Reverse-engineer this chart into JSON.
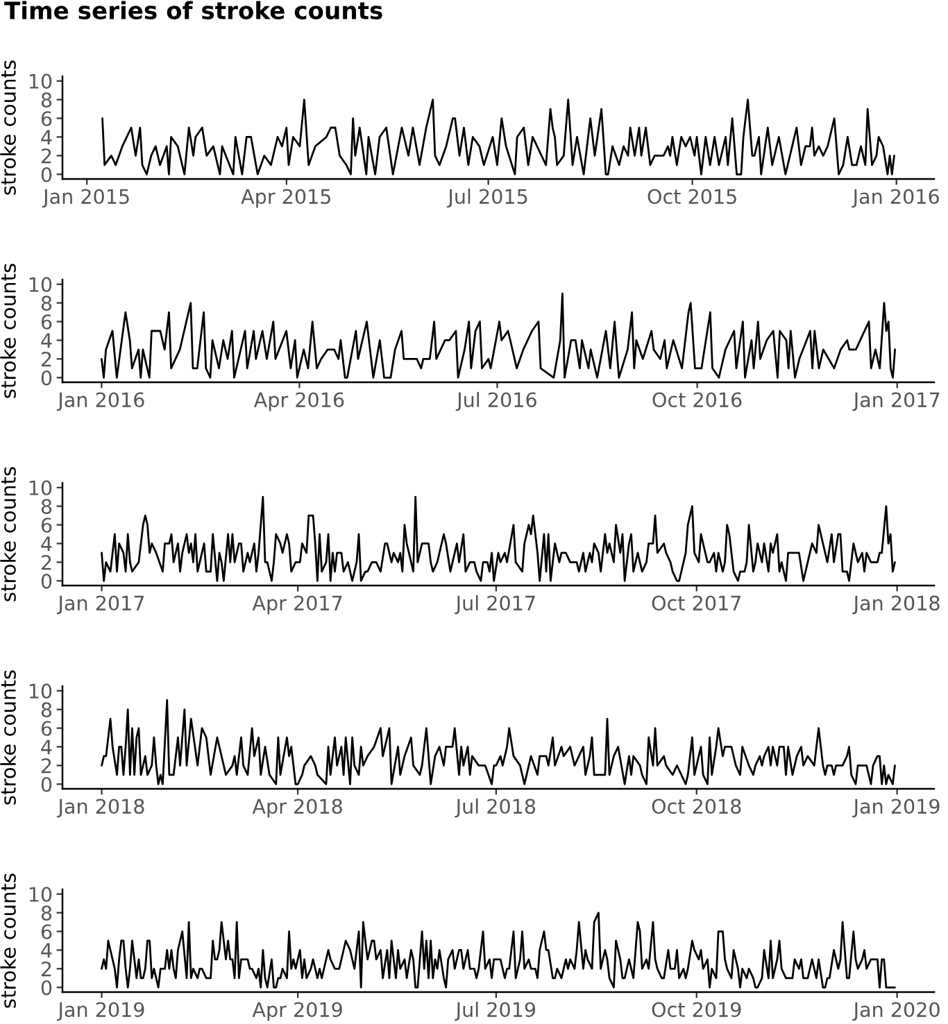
{
  "chart_data": [
    {
      "type": "line",
      "title": "Time series of stroke counts",
      "ylabel": "stroke counts",
      "color": "#000000",
      "x": [
        "2015-01-08",
        "2015-01-09",
        "2015-01-12",
        "2015-01-14",
        "2015-01-17",
        "2015-01-19",
        "2015-01-21",
        "2015-01-23",
        "2015-01-25",
        "2015-01-26",
        "2015-01-28",
        "2015-01-30",
        "2015-02-01",
        "2015-02-03",
        "2015-02-06",
        "2015-02-07",
        "2015-02-08",
        "2015-02-11",
        "2015-02-14",
        "2015-02-16",
        "2015-02-18",
        "2015-02-19",
        "2015-02-22",
        "2015-02-24",
        "2015-02-27",
        "2015-03-02",
        "2015-03-03",
        "2015-03-08",
        "2015-03-09",
        "2015-03-12",
        "2015-03-14",
        "2015-03-16",
        "2015-03-19",
        "2015-03-22",
        "2015-03-25",
        "2015-03-28",
        "2015-03-30",
        "2015-04-01",
        "2015-04-02",
        "2015-04-04",
        "2015-04-07",
        "2015-04-09",
        "2015-04-11",
        "2015-04-14",
        "2015-04-19",
        "2015-04-21",
        "2015-04-23",
        "2015-04-25",
        "2015-04-28",
        "2015-04-30",
        "2015-05-01",
        "2015-05-02",
        "2015-05-04",
        "2015-05-07",
        "2015-05-08",
        "2015-05-11",
        "2015-05-13",
        "2015-05-16",
        "2015-05-19",
        "2015-05-23",
        "2015-05-26",
        "2015-05-28",
        "2015-05-31",
        "2015-06-03",
        "2015-06-06",
        "2015-06-07",
        "2015-06-09",
        "2015-06-12",
        "2015-06-15",
        "2015-06-16",
        "2015-06-18",
        "2015-06-20",
        "2015-06-22",
        "2015-06-24",
        "2015-06-27",
        "2015-06-29",
        "2015-07-03",
        "2015-07-05",
        "2015-07-07",
        "2015-07-09",
        "2015-07-13",
        "2015-07-14",
        "2015-07-17",
        "2015-07-19",
        "2015-07-21",
        "2015-07-25",
        "2015-07-27",
        "2015-07-29",
        "2015-07-30",
        "2015-07-31",
        "2015-08-01",
        "2015-08-04",
        "2015-08-06",
        "2015-08-08",
        "2015-08-10",
        "2015-08-13",
        "2015-08-16",
        "2015-08-18",
        "2015-08-21",
        "2015-08-23",
        "2015-08-24",
        "2015-08-26",
        "2015-08-29",
        "2015-08-31",
        "2015-09-02",
        "2015-09-03",
        "2015-09-05",
        "2015-09-07",
        "2015-09-08",
        "2015-09-10",
        "2015-09-12",
        "2015-09-14",
        "2015-09-18",
        "2015-09-20",
        "2015-09-21",
        "2015-09-22",
        "2015-09-24",
        "2015-09-26",
        "2015-09-28",
        "2015-09-30",
        "2015-10-02",
        "2015-10-03",
        "2015-10-05",
        "2015-10-07",
        "2015-10-09",
        "2015-10-11",
        "2015-10-13",
        "2015-10-16",
        "2015-10-17",
        "2015-10-19",
        "2015-10-21",
        "2015-10-23",
        "2015-10-24",
        "2015-10-26",
        "2015-10-28",
        "2015-10-29",
        "2015-10-31",
        "2015-11-01",
        "2015-11-04",
        "2015-11-06",
        "2015-11-09",
        "2015-11-12",
        "2015-11-15",
        "2015-11-17",
        "2015-11-19",
        "2015-11-21",
        "2015-11-23",
        "2015-11-24",
        "2015-11-25",
        "2015-11-27",
        "2015-11-29",
        "2015-12-01",
        "2015-12-04",
        "2015-12-06",
        "2015-12-08",
        "2015-12-10",
        "2015-12-12",
        "2015-12-14",
        "2015-12-16",
        "2015-12-18",
        "2015-12-19",
        "2015-12-21",
        "2015-12-23",
        "2015-12-24",
        "2015-12-26",
        "2015-12-28",
        "2015-12-29",
        "2015-12-30",
        "2015-12-31"
      ],
      "values": [
        6,
        1,
        2,
        1,
        3,
        4,
        5,
        2,
        5,
        1,
        0,
        2,
        3,
        1,
        3,
        0,
        4,
        3,
        0,
        5,
        2,
        4,
        5,
        2,
        3,
        0,
        3,
        0,
        4,
        0,
        4,
        4,
        0,
        2,
        1,
        4,
        3,
        5,
        1,
        4,
        3,
        8,
        1,
        3,
        4,
        5,
        5,
        2,
        1,
        0,
        6,
        2,
        5,
        0,
        4,
        0,
        4,
        5,
        0,
        5,
        2,
        5,
        1,
        5,
        8,
        2,
        1,
        3,
        6,
        6,
        2,
        5,
        1,
        4,
        3,
        1,
        4,
        1,
        6,
        3,
        0,
        4,
        5,
        1,
        4,
        2,
        1,
        7,
        5,
        4,
        1,
        2,
        8,
        1,
        4,
        0,
        6,
        2,
        7,
        0,
        0,
        3,
        1,
        3,
        2,
        5,
        2,
        5,
        2,
        5,
        1,
        2,
        2,
        3,
        2,
        4,
        1,
        4,
        3,
        4,
        2,
        4,
        0,
        4,
        1,
        4,
        1,
        4,
        1,
        6,
        0,
        0,
        4,
        8,
        2,
        2,
        4,
        0,
        5,
        1,
        4,
        0,
        3,
        5,
        1,
        3,
        3,
        5,
        2,
        3,
        2,
        3,
        6,
        0,
        1,
        4,
        1,
        1,
        3,
        1,
        7,
        1,
        2,
        4,
        3,
        0,
        2,
        0,
        2
      ],
      "xlim": [
        "2014-12-21",
        "2016-01-18"
      ],
      "xticks": [
        {
          "value": "2015-01-01",
          "label": "Jan 2015"
        },
        {
          "value": "2015-04-01",
          "label": "Apr 2015"
        },
        {
          "value": "2015-07-01",
          "label": "Jul 2015"
        },
        {
          "value": "2015-10-01",
          "label": "Oct 2015"
        },
        {
          "value": "2016-01-01",
          "label": "Jan 2016"
        }
      ],
      "ylim": [
        -0.5,
        10.5
      ],
      "yticks": [
        0,
        2,
        4,
        6,
        8,
        10
      ]
    },
    {
      "type": "line",
      "ylabel": "stroke counts",
      "color": "#000000",
      "x": [
        "2016-01-01",
        "2016-01-02",
        "2016-01-03",
        "2016-01-06",
        "2016-01-08",
        "2016-01-12",
        "2016-01-14",
        "2016-01-15",
        "2016-01-18",
        "2016-01-19",
        "2016-01-20",
        "2016-01-23",
        "2016-01-24",
        "2016-01-28",
        "2016-01-30",
        "2016-02-01",
        "2016-02-02",
        "2016-02-06",
        "2016-02-11",
        "2016-02-12",
        "2016-02-14",
        "2016-02-17",
        "2016-02-18",
        "2016-02-20",
        "2016-02-21",
        "2016-02-24",
        "2016-02-26",
        "2016-02-28",
        "2016-03-01",
        "2016-03-02",
        "2016-03-07",
        "2016-03-08",
        "2016-03-11",
        "2016-03-12",
        "2016-03-15",
        "2016-03-17",
        "2016-03-20",
        "2016-03-21",
        "2016-03-26",
        "2016-03-28",
        "2016-03-30",
        "2016-03-31",
        "2016-04-03",
        "2016-04-05",
        "2016-04-07",
        "2016-04-09",
        "2016-04-11",
        "2016-04-14",
        "2016-04-17",
        "2016-04-19",
        "2016-04-20",
        "2016-04-22",
        "2016-04-23",
        "2016-04-27",
        "2016-04-28",
        "2016-04-29",
        "2016-05-02",
        "2016-05-05",
        "2016-05-08",
        "2016-05-10",
        "2016-05-13",
        "2016-05-15",
        "2016-05-18",
        "2016-05-19",
        "2016-05-25",
        "2016-05-27",
        "2016-05-28",
        "2016-05-31",
        "2016-06-02",
        "2016-06-03",
        "2016-06-07",
        "2016-06-09",
        "2016-06-12",
        "2016-06-13",
        "2016-06-16",
        "2016-06-18",
        "2016-06-19",
        "2016-06-21",
        "2016-06-23",
        "2016-06-24",
        "2016-06-27",
        "2016-06-28",
        "2016-07-02",
        "2016-07-03",
        "2016-07-06",
        "2016-07-10",
        "2016-07-13",
        "2016-07-17",
        "2016-07-20",
        "2016-07-21",
        "2016-07-27",
        "2016-07-30",
        "2016-07-31",
        "2016-08-01",
        "2016-08-04",
        "2016-08-06",
        "2016-08-08",
        "2016-08-09",
        "2016-08-12",
        "2016-08-13",
        "2016-08-16",
        "2016-08-20",
        "2016-08-22",
        "2016-08-24",
        "2016-08-26",
        "2016-08-30",
        "2016-09-01",
        "2016-09-02",
        "2016-09-03",
        "2016-09-06",
        "2016-09-10",
        "2016-09-11",
        "2016-09-14",
        "2016-09-16",
        "2016-09-17",
        "2016-09-20",
        "2016-09-24",
        "2016-09-27",
        "2016-09-28",
        "2016-09-30",
        "2016-10-03",
        "2016-10-05",
        "2016-10-07",
        "2016-10-08",
        "2016-10-11",
        "2016-10-14",
        "2016-10-18",
        "2016-10-19",
        "2016-10-22",
        "2016-10-23",
        "2016-10-26",
        "2016-10-27",
        "2016-10-29",
        "2016-10-30",
        "2016-11-02",
        "2016-11-05",
        "2016-11-07",
        "2016-11-08",
        "2016-11-11",
        "2016-11-12",
        "2016-11-13",
        "2016-11-15",
        "2016-11-17",
        "2016-11-22",
        "2016-11-23",
        "2016-11-24",
        "2016-11-26",
        "2016-11-28",
        "2016-12-03",
        "2016-12-06",
        "2016-12-09",
        "2016-12-10",
        "2016-12-13",
        "2016-12-15",
        "2016-12-19",
        "2016-12-20",
        "2016-12-22",
        "2016-12-24",
        "2016-12-26",
        "2016-12-27",
        "2016-12-28",
        "2016-12-29",
        "2016-12-30",
        "2016-12-31"
      ],
      "values": [
        2,
        0,
        3,
        5,
        0,
        7,
        4,
        1,
        3,
        0,
        3,
        0,
        5,
        5,
        3,
        7,
        1,
        3,
        8,
        1,
        1,
        7,
        1,
        0,
        4,
        1,
        4,
        2,
        5,
        0,
        5,
        1,
        5,
        2,
        5,
        2,
        6,
        2,
        5,
        1,
        4,
        0,
        3,
        1,
        6,
        1,
        2,
        3,
        3,
        2,
        4,
        0,
        0,
        5,
        2,
        3,
        6,
        0,
        4,
        0,
        0,
        3,
        5,
        2,
        2,
        1,
        2,
        2,
        6,
        2,
        4,
        4,
        5,
        0,
        3,
        6,
        1,
        5,
        6,
        1,
        2,
        1,
        6,
        4,
        5,
        1,
        3,
        5,
        6,
        1,
        0,
        4,
        9,
        0,
        4,
        4,
        1,
        4,
        1,
        3,
        0,
        5,
        1,
        6,
        0,
        3,
        7,
        1,
        4,
        2,
        5,
        3,
        2,
        4,
        1,
        4,
        1,
        7,
        8,
        1,
        1,
        4,
        7,
        1,
        0,
        3,
        5,
        1,
        6,
        0,
        4,
        1,
        6,
        2,
        4,
        5,
        0,
        5,
        4,
        1,
        5,
        0,
        2,
        5,
        1,
        5,
        1,
        3,
        1,
        3,
        4,
        3,
        3,
        4,
        6,
        1,
        3,
        1,
        8,
        5,
        6,
        1,
        0,
        3
      ],
      "xlim": [
        "2015-12-14",
        "2017-01-18"
      ],
      "xticks": [
        {
          "value": "2016-01-01",
          "label": "Jan 2016"
        },
        {
          "value": "2016-04-01",
          "label": "Apr 2016"
        },
        {
          "value": "2016-07-01",
          "label": "Jul 2016"
        },
        {
          "value": "2016-10-01",
          "label": "Oct 2016"
        },
        {
          "value": "2017-01-01",
          "label": "Jan 2017"
        }
      ],
      "ylim": [
        -0.5,
        10.5
      ],
      "yticks": [
        0,
        2,
        4,
        6,
        8,
        10
      ]
    },
    {
      "type": "line",
      "ylabel": "stroke counts",
      "color": "#000000",
      "x": [
        "2017-01-01",
        "2017-01-02",
        "2017-01-03",
        "2017-01-05",
        "2017-01-07",
        "2017-01-08",
        "2017-01-09",
        "2017-01-11",
        "2017-01-12",
        "2017-01-13",
        "2017-01-14",
        "2017-01-15",
        "2017-01-18",
        "2017-01-20",
        "2017-01-21",
        "2017-01-22",
        "2017-01-23",
        "2017-01-24",
        "2017-01-26",
        "2017-01-29",
        "2017-01-30",
        "2017-02-01",
        "2017-02-02",
        "2017-02-03",
        "2017-02-05",
        "2017-02-06",
        "2017-02-07",
        "2017-02-09",
        "2017-02-10",
        "2017-02-11",
        "2017-02-12",
        "2017-02-13",
        "2017-02-14",
        "2017-02-16",
        "2017-02-17",
        "2017-02-18",
        "2017-02-20",
        "2017-02-21",
        "2017-02-23",
        "2017-02-24",
        "2017-02-25",
        "2017-02-26",
        "2017-02-28",
        "2017-03-01",
        "2017-03-02",
        "2017-03-03",
        "2017-03-05",
        "2017-03-06",
        "2017-03-07",
        "2017-03-09",
        "2017-03-10",
        "2017-03-12",
        "2017-03-13",
        "2017-03-14",
        "2017-03-16",
        "2017-03-17",
        "2017-03-18",
        "2017-03-20",
        "2017-03-21",
        "2017-03-22",
        "2017-03-24",
        "2017-03-25",
        "2017-03-27",
        "2017-03-28",
        "2017-03-29",
        "2017-03-31",
        "2017-04-02",
        "2017-04-03",
        "2017-04-05",
        "2017-04-06",
        "2017-04-08",
        "2017-04-09",
        "2017-04-10",
        "2017-04-11",
        "2017-04-12",
        "2017-04-14",
        "2017-04-15",
        "2017-04-16",
        "2017-04-17",
        "2017-04-18",
        "2017-04-19",
        "2017-04-21",
        "2017-04-22",
        "2017-04-24",
        "2017-04-25",
        "2017-04-26",
        "2017-04-28",
        "2017-04-29",
        "2017-04-30",
        "2017-05-02",
        "2017-05-03",
        "2017-05-05",
        "2017-05-07",
        "2017-05-09",
        "2017-05-11",
        "2017-05-12",
        "2017-05-14",
        "2017-05-15",
        "2017-05-17",
        "2017-05-18",
        "2017-05-19",
        "2017-05-20",
        "2017-05-21",
        "2017-05-23",
        "2017-05-24",
        "2017-05-25",
        "2017-05-26",
        "2017-05-28",
        "2017-05-31",
        "2017-06-01",
        "2017-06-02",
        "2017-06-04",
        "2017-06-07",
        "2017-06-08",
        "2017-06-10",
        "2017-06-11",
        "2017-06-13",
        "2017-06-14",
        "2017-06-16",
        "2017-06-17",
        "2017-06-19",
        "2017-06-21",
        "2017-06-22",
        "2017-06-24",
        "2017-06-25",
        "2017-06-27",
        "2017-06-28",
        "2017-06-29",
        "2017-06-30",
        "2017-07-02",
        "2017-07-03",
        "2017-07-05",
        "2017-07-06",
        "2017-07-09",
        "2017-07-10",
        "2017-07-13",
        "2017-07-14",
        "2017-07-16",
        "2017-07-17",
        "2017-07-18",
        "2017-07-20",
        "2017-07-21",
        "2017-07-23",
        "2017-07-24",
        "2017-07-25",
        "2017-07-26",
        "2017-07-28",
        "2017-07-30",
        "2017-07-31",
        "2017-08-02",
        "2017-08-04",
        "2017-08-07",
        "2017-08-08",
        "2017-08-10",
        "2017-08-11",
        "2017-08-13",
        "2017-08-14",
        "2017-08-15",
        "2017-08-17",
        "2017-08-18",
        "2017-08-20",
        "2017-08-21",
        "2017-08-22",
        "2017-08-24",
        "2017-08-25",
        "2017-08-27",
        "2017-08-28",
        "2017-08-29",
        "2017-08-31",
        "2017-09-01",
        "2017-09-02",
        "2017-09-04",
        "2017-09-06",
        "2017-09-08",
        "2017-09-09",
        "2017-09-11",
        "2017-09-12",
        "2017-09-13",
        "2017-09-16",
        "2017-09-17",
        "2017-09-19",
        "2017-09-20",
        "2017-09-22",
        "2017-09-23",
        "2017-09-24",
        "2017-09-26",
        "2017-09-27",
        "2017-09-29",
        "2017-09-30",
        "2017-10-02",
        "2017-10-03",
        "2017-10-04",
        "2017-10-06",
        "2017-10-07",
        "2017-10-09",
        "2017-10-10",
        "2017-10-11",
        "2017-10-13",
        "2017-10-14",
        "2017-10-15",
        "2017-10-16",
        "2017-10-18",
        "2017-10-20",
        "2017-10-21",
        "2017-10-23",
        "2017-10-24",
        "2017-10-25",
        "2017-10-27",
        "2017-10-28",
        "2017-10-29",
        "2017-10-31",
        "2017-11-01",
        "2017-11-03",
        "2017-11-04",
        "2017-11-05",
        "2017-11-07",
        "2017-11-08",
        "2017-11-09",
        "2017-11-11",
        "2017-11-12",
        "2017-11-17",
        "2017-11-19",
        "2017-11-21",
        "2017-11-22",
        "2017-11-23",
        "2017-11-25",
        "2017-11-26",
        "2017-11-28",
        "2017-11-29",
        "2017-11-30",
        "2017-12-02",
        "2017-12-03",
        "2017-12-05",
        "2017-12-06",
        "2017-12-07",
        "2017-12-09",
        "2017-12-10",
        "2017-12-12",
        "2017-12-13",
        "2017-12-14",
        "2017-12-16",
        "2017-12-17",
        "2017-12-18",
        "2017-12-20",
        "2017-12-23",
        "2017-12-24",
        "2017-12-25",
        "2017-12-27",
        "2017-12-28",
        "2017-12-29",
        "2017-12-30",
        "2017-12-31"
      ],
      "values": [
        3,
        0,
        2,
        1,
        5,
        1,
        4,
        3,
        1,
        5,
        2,
        1,
        2,
        6,
        7,
        6,
        3,
        4,
        3,
        1,
        4,
        4,
        5,
        2,
        4,
        1,
        3,
        5,
        3,
        4,
        2,
        5,
        1,
        3,
        4,
        1,
        1,
        5,
        0,
        3,
        2,
        0,
        5,
        2,
        5,
        2,
        4,
        4,
        1,
        3,
        2,
        4,
        1,
        3,
        9,
        2,
        2,
        0,
        2,
        5,
        4,
        3,
        5,
        4,
        1,
        2,
        2,
        4,
        3,
        7,
        7,
        4,
        0,
        5,
        1,
        2,
        5,
        0,
        3,
        1,
        3,
        3,
        1,
        2,
        1,
        0,
        2,
        5,
        0,
        1,
        1,
        2,
        2,
        1,
        4,
        4,
        2,
        3,
        2,
        3,
        1,
        6,
        4,
        2,
        1,
        9,
        2,
        4,
        4,
        2,
        1,
        2,
        5,
        4,
        1,
        2,
        4,
        2,
        5,
        1,
        2,
        2,
        1,
        0,
        2,
        2,
        1,
        3,
        0,
        3,
        2,
        3,
        2,
        6,
        2,
        1,
        4,
        6,
        5,
        7,
        3,
        0,
        5,
        1,
        5,
        0,
        4,
        2,
        3,
        3,
        2,
        2,
        1,
        3,
        1,
        3,
        2,
        4,
        3,
        1,
        5,
        3,
        4,
        2,
        6,
        3,
        5,
        0,
        4,
        5,
        1,
        3,
        1,
        2,
        4,
        4,
        7,
        3,
        4,
        3,
        2,
        1,
        0,
        0,
        1,
        3,
        6,
        8,
        3,
        2,
        5,
        4,
        2,
        2,
        3,
        1,
        3,
        1,
        2,
        6,
        5,
        1,
        0,
        1,
        1,
        2,
        6,
        1,
        2,
        4,
        2,
        4,
        1,
        4,
        3,
        5,
        1,
        2,
        0,
        3,
        3,
        0,
        2,
        3,
        4,
        3,
        6,
        4,
        3,
        2,
        5,
        2,
        5,
        5,
        1,
        1,
        0,
        4,
        3,
        2,
        3,
        1,
        3,
        2,
        2,
        3,
        3,
        8,
        4,
        5,
        1,
        2
      ],
      "xlim": [
        "2016-12-14",
        "2018-01-18"
      ],
      "xticks": [
        {
          "value": "2017-01-01",
          "label": "Jan 2017"
        },
        {
          "value": "2017-04-01",
          "label": "Apr 2017"
        },
        {
          "value": "2017-07-01",
          "label": "Jul 2017"
        },
        {
          "value": "2017-10-01",
          "label": "Oct 2017"
        },
        {
          "value": "2018-01-01",
          "label": "Jan 2018"
        }
      ],
      "ylim": [
        -0.5,
        10.5
      ],
      "yticks": [
        0,
        2,
        4,
        6,
        8,
        10
      ]
    },
    {
      "type": "line",
      "ylabel": "stroke counts",
      "color": "#000000",
      "x": [
        "2018-01-01",
        "2018-01-02",
        "2018-01-03",
        "2018-01-05",
        "2018-01-06",
        "2018-01-08",
        "2018-01-09",
        "2018-01-10",
        "2018-01-11",
        "2018-01-12",
        "2018-01-13",
        "2018-01-14",
        "2018-01-15",
        "2018-01-16",
        "2018-01-17",
        "2018-01-18",
        "2018-01-19",
        "2018-01-21",
        "2018-01-22",
        "2018-01-24",
        "2018-01-25",
        "2018-01-26",
        "2018-01-27",
        "2018-01-28",
        "2018-01-29",
        "2018-01-31",
        "2018-02-01",
        "2018-02-03",
        "2018-02-05",
        "2018-02-06",
        "2018-02-08",
        "2018-02-09",
        "2018-02-11",
        "2018-02-14",
        "2018-02-16",
        "2018-02-18",
        "2018-02-20",
        "2018-02-23",
        "2018-02-25",
        "2018-02-27",
        "2018-03-02",
        "2018-03-03",
        "2018-03-04",
        "2018-03-06",
        "2018-03-07",
        "2018-03-09",
        "2018-03-11",
        "2018-03-12",
        "2018-03-14",
        "2018-03-15",
        "2018-03-17",
        "2018-03-19",
        "2018-03-22",
        "2018-03-23",
        "2018-03-24",
        "2018-03-27",
        "2018-03-28",
        "2018-03-29",
        "2018-03-31",
        "2018-04-01",
        "2018-04-03",
        "2018-04-04",
        "2018-04-07",
        "2018-04-09",
        "2018-04-10",
        "2018-04-14",
        "2018-04-15",
        "2018-04-16",
        "2018-04-18",
        "2018-04-19",
        "2018-04-21",
        "2018-04-22",
        "2018-04-23",
        "2018-04-25",
        "2018-04-26",
        "2018-04-27",
        "2018-04-29",
        "2018-04-30",
        "2018-05-01",
        "2018-05-03",
        "2018-05-06",
        "2018-05-09",
        "2018-05-10",
        "2018-05-13",
        "2018-05-14",
        "2018-05-17",
        "2018-05-18",
        "2018-05-20",
        "2018-05-23",
        "2018-05-24",
        "2018-05-27",
        "2018-05-28",
        "2018-05-30",
        "2018-05-31",
        "2018-06-01",
        "2018-06-03",
        "2018-06-05",
        "2018-06-07",
        "2018-06-08",
        "2018-06-11",
        "2018-06-12",
        "2018-06-14",
        "2018-06-15",
        "2018-06-16",
        "2018-06-18",
        "2018-06-19",
        "2018-06-20",
        "2018-06-23",
        "2018-06-26",
        "2018-06-29",
        "2018-06-30",
        "2018-07-01",
        "2018-07-03",
        "2018-07-04",
        "2018-07-06",
        "2018-07-07",
        "2018-07-09",
        "2018-07-12",
        "2018-07-14",
        "2018-07-16",
        "2018-07-17",
        "2018-07-20",
        "2018-07-21",
        "2018-07-24",
        "2018-07-25",
        "2018-07-27",
        "2018-07-28",
        "2018-07-31",
        "2018-08-01",
        "2018-08-04",
        "2018-08-06",
        "2018-08-10",
        "2018-08-11",
        "2018-08-13",
        "2018-08-14",
        "2018-08-15",
        "2018-08-20",
        "2018-08-21",
        "2018-08-22",
        "2018-08-24",
        "2018-08-26",
        "2018-08-29",
        "2018-08-31",
        "2018-09-01",
        "2018-09-02",
        "2018-09-05",
        "2018-09-06",
        "2018-09-08",
        "2018-09-09",
        "2018-09-11",
        "2018-09-12",
        "2018-09-13",
        "2018-09-16",
        "2018-09-17",
        "2018-09-20",
        "2018-09-22",
        "2018-09-26",
        "2018-09-27",
        "2018-09-29",
        "2018-09-30",
        "2018-10-02",
        "2018-10-03",
        "2018-10-04",
        "2018-10-06",
        "2018-10-07",
        "2018-10-08",
        "2018-10-10",
        "2018-10-11",
        "2018-10-13",
        "2018-10-14",
        "2018-10-17",
        "2018-10-18",
        "2018-10-19",
        "2018-10-21",
        "2018-10-22",
        "2018-10-25",
        "2018-10-27",
        "2018-10-28",
        "2018-10-30",
        "2018-10-31",
        "2018-11-01",
        "2018-11-03",
        "2018-11-04",
        "2018-11-05",
        "2018-11-07",
        "2018-11-08",
        "2018-11-10",
        "2018-11-11",
        "2018-11-12",
        "2018-11-14",
        "2018-11-16",
        "2018-11-18",
        "2018-11-19",
        "2018-11-21",
        "2018-11-24",
        "2018-11-26",
        "2018-11-28",
        "2018-11-29",
        "2018-11-30",
        "2018-12-02",
        "2018-12-03",
        "2018-12-04",
        "2018-12-07",
        "2018-12-09",
        "2018-12-10",
        "2018-12-11",
        "2018-12-13",
        "2018-12-14",
        "2018-12-17",
        "2018-12-18",
        "2018-12-20",
        "2018-12-21",
        "2018-12-23",
        "2018-12-24",
        "2018-12-25",
        "2018-12-26",
        "2018-12-27",
        "2018-12-28",
        "2018-12-30",
        "2018-12-31"
      ],
      "values": [
        2,
        3,
        3,
        7,
        4,
        1,
        4,
        4,
        1,
        4,
        8,
        1,
        6,
        1,
        5,
        6,
        1,
        3,
        1,
        2,
        5,
        2,
        0,
        1,
        0,
        9,
        1,
        1,
        5,
        2,
        8,
        2,
        7,
        2,
        6,
        5,
        1,
        5,
        3,
        1,
        2,
        3,
        1,
        5,
        2,
        1,
        6,
        3,
        5,
        1,
        4,
        1,
        0,
        5,
        1,
        5,
        3,
        4,
        0,
        0,
        1,
        2,
        3,
        2,
        1,
        0,
        4,
        1,
        5,
        2,
        4,
        1,
        5,
        0,
        5,
        2,
        1,
        4,
        2,
        3,
        4,
        6,
        3,
        6,
        0,
        4,
        1,
        3,
        5,
        2,
        1,
        2,
        6,
        3,
        0,
        3,
        4,
        2,
        4,
        4,
        6,
        1,
        4,
        2,
        4,
        1,
        3,
        2,
        2,
        0,
        2,
        2,
        3,
        2,
        4,
        6,
        3,
        2,
        0,
        2,
        3,
        1,
        3,
        3,
        2,
        5,
        2,
        4,
        3,
        4,
        2,
        4,
        1,
        3,
        5,
        1,
        1,
        7,
        1,
        3,
        4,
        0,
        3,
        1,
        3,
        2,
        1,
        0,
        5,
        2,
        6,
        2,
        3,
        2,
        1,
        2,
        0,
        1,
        5,
        1,
        3,
        4,
        1,
        0,
        5,
        1,
        4,
        6,
        3,
        4,
        4,
        3,
        2,
        1,
        4,
        2,
        1,
        2,
        3,
        2,
        3,
        4,
        2,
        4,
        2,
        4,
        4,
        1,
        4,
        1,
        3,
        4,
        2,
        3,
        2,
        6,
        2,
        1,
        2,
        2,
        1,
        2,
        2,
        3,
        4,
        1,
        0,
        2,
        2,
        2,
        0,
        2,
        3,
        3,
        0,
        2,
        0,
        1,
        0,
        2
      ],
      "xlim": [
        "2017-12-14",
        "2019-01-18"
      ],
      "xticks": [
        {
          "value": "2018-01-01",
          "label": "Jan 2018"
        },
        {
          "value": "2018-04-01",
          "label": "Apr 2018"
        },
        {
          "value": "2018-07-01",
          "label": "Jul 2018"
        },
        {
          "value": "2018-10-01",
          "label": "Oct 2018"
        },
        {
          "value": "2019-01-01",
          "label": "Jan 2019"
        }
      ],
      "ylim": [
        -0.5,
        10.5
      ],
      "yticks": [
        0,
        2,
        4,
        6,
        8,
        10
      ]
    },
    {
      "type": "line",
      "ylabel": "stroke counts",
      "color": "#000000",
      "x": [
        "2019-01-01",
        "2019-01-02",
        "2019-01-03",
        "2019-01-04",
        "2019-01-05",
        "2019-01-07",
        "2019-01-08",
        "2019-01-09",
        "2019-01-10",
        "2019-01-11",
        "2019-01-12",
        "2019-01-13",
        "2019-01-14",
        "2019-01-15",
        "2019-01-17",
        "2019-01-18",
        "2019-01-19",
        "2019-01-20",
        "2019-01-21",
        "2019-01-22",
        "2019-01-23",
        "2019-01-24",
        "2019-01-25",
        "2019-01-27",
        "2019-01-28",
        "2019-01-30",
        "2019-01-31",
        "2019-02-01",
        "2019-02-02",
        "2019-02-03",
        "2019-02-04",
        "2019-02-05",
        "2019-02-06",
        "2019-02-07",
        "2019-02-09",
        "2019-02-10",
        "2019-02-11",
        "2019-02-12",
        "2019-02-14",
        "2019-02-15",
        "2019-02-16",
        "2019-02-18",
        "2019-02-20",
        "2019-02-21",
        "2019-02-22",
        "2019-02-23",
        "2019-02-24",
        "2019-02-25",
        "2019-02-27",
        "2019-02-28",
        "2019-03-01",
        "2019-03-02",
        "2019-03-03",
        "2019-03-04",
        "2019-03-05",
        "2019-03-06",
        "2019-03-09",
        "2019-03-10",
        "2019-03-11",
        "2019-03-13",
        "2019-03-14",
        "2019-03-15",
        "2019-03-16",
        "2019-03-17",
        "2019-03-18",
        "2019-03-20",
        "2019-03-21",
        "2019-03-22",
        "2019-03-23",
        "2019-03-24",
        "2019-03-25",
        "2019-03-27",
        "2019-03-28",
        "2019-03-29",
        "2019-03-30",
        "2019-03-31",
        "2019-04-02",
        "2019-04-03",
        "2019-04-04",
        "2019-04-05",
        "2019-04-07",
        "2019-04-08",
        "2019-04-10",
        "2019-04-11",
        "2019-04-12",
        "2019-04-14",
        "2019-04-15",
        "2019-04-16",
        "2019-04-18",
        "2019-04-20",
        "2019-04-21",
        "2019-04-22",
        "2019-04-23",
        "2019-04-25",
        "2019-04-26",
        "2019-04-27",
        "2019-04-29",
        "2019-04-30",
        "2019-05-01",
        "2019-05-03",
        "2019-05-04",
        "2019-05-05",
        "2019-05-06",
        "2019-05-07",
        "2019-05-09",
        "2019-05-10",
        "2019-05-12",
        "2019-05-13",
        "2019-05-14",
        "2019-05-16",
        "2019-05-17",
        "2019-05-18",
        "2019-05-20",
        "2019-05-21",
        "2019-05-23",
        "2019-05-24",
        "2019-05-25",
        "2019-05-26",
        "2019-05-28",
        "2019-05-29",
        "2019-05-30",
        "2019-05-31",
        "2019-06-01",
        "2019-06-02",
        "2019-06-03",
        "2019-06-04",
        "2019-06-05",
        "2019-06-07",
        "2019-06-08",
        "2019-06-09",
        "2019-06-11",
        "2019-06-12",
        "2019-06-14",
        "2019-06-15",
        "2019-06-16",
        "2019-06-18",
        "2019-06-19",
        "2019-06-21",
        "2019-06-22",
        "2019-06-23",
        "2019-06-25",
        "2019-06-26",
        "2019-06-28",
        "2019-06-29",
        "2019-06-30",
        "2019-07-02",
        "2019-07-03",
        "2019-07-05",
        "2019-07-06",
        "2019-07-07",
        "2019-07-09",
        "2019-07-10",
        "2019-07-12",
        "2019-07-13",
        "2019-07-14",
        "2019-07-16",
        "2019-07-17",
        "2019-07-19",
        "2019-07-20",
        "2019-07-21",
        "2019-07-23",
        "2019-07-24",
        "2019-07-25",
        "2019-07-27",
        "2019-07-28",
        "2019-07-29",
        "2019-07-31",
        "2019-08-02",
        "2019-08-03",
        "2019-08-04",
        "2019-08-06",
        "2019-08-07",
        "2019-08-08",
        "2019-08-10",
        "2019-08-11",
        "2019-08-12",
        "2019-08-14",
        "2019-08-15",
        "2019-08-17",
        "2019-08-18",
        "2019-08-20",
        "2019-08-21",
        "2019-08-22",
        "2019-08-24",
        "2019-08-25",
        "2019-08-27",
        "2019-08-28",
        "2019-08-29",
        "2019-08-31",
        "2019-09-01",
        "2019-09-02",
        "2019-09-04",
        "2019-09-05",
        "2019-09-06",
        "2019-09-08",
        "2019-09-09",
        "2019-09-11",
        "2019-09-12",
        "2019-09-13",
        "2019-09-15",
        "2019-09-16",
        "2019-09-18",
        "2019-09-19",
        "2019-09-21",
        "2019-09-22",
        "2019-09-23",
        "2019-09-25",
        "2019-09-26",
        "2019-09-27",
        "2019-09-29",
        "2019-09-30",
        "2019-10-02",
        "2019-10-03",
        "2019-10-04",
        "2019-10-06",
        "2019-10-07",
        "2019-10-08",
        "2019-10-10",
        "2019-10-11",
        "2019-10-13",
        "2019-10-14",
        "2019-10-15",
        "2019-10-17",
        "2019-10-18",
        "2019-10-20",
        "2019-10-21",
        "2019-10-22",
        "2019-10-24",
        "2019-10-25",
        "2019-10-27",
        "2019-10-28",
        "2019-10-29",
        "2019-10-31",
        "2019-11-01",
        "2019-11-03",
        "2019-11-04",
        "2019-11-05",
        "2019-11-07",
        "2019-11-08",
        "2019-11-09",
        "2019-11-11",
        "2019-11-13",
        "2019-11-14",
        "2019-11-15",
        "2019-11-17",
        "2019-11-18",
        "2019-11-19",
        "2019-11-21",
        "2019-11-22",
        "2019-11-23",
        "2019-11-25",
        "2019-11-26",
        "2019-11-28",
        "2019-11-29",
        "2019-11-30",
        "2019-12-01",
        "2019-12-03",
        "2019-12-05",
        "2019-12-06",
        "2019-12-07",
        "2019-12-09",
        "2019-12-10",
        "2019-12-12",
        "2019-12-13",
        "2019-12-14",
        "2019-12-16",
        "2019-12-17",
        "2019-12-18",
        "2019-12-20",
        "2019-12-23",
        "2019-12-24",
        "2019-12-25",
        "2019-12-26",
        "2019-12-27",
        "2019-12-31"
      ],
      "values": [
        2,
        3,
        2,
        5,
        4,
        2,
        0,
        3,
        5,
        5,
        2,
        0,
        2,
        5,
        1,
        3,
        1,
        1,
        2,
        5,
        5,
        1,
        2,
        0,
        2,
        2,
        4,
        2,
        4,
        2,
        1,
        4,
        5,
        6,
        1,
        7,
        1,
        2,
        1,
        2,
        2,
        1,
        1,
        5,
        3,
        3,
        4,
        7,
        3,
        5,
        3,
        3,
        1,
        7,
        1,
        3,
        3,
        2,
        2,
        1,
        2,
        0,
        4,
        1,
        0,
        3,
        0,
        0,
        1,
        1,
        2,
        1,
        6,
        2,
        3,
        2,
        4,
        1,
        3,
        1,
        2,
        3,
        1,
        2,
        1,
        3,
        4,
        3,
        2,
        2,
        3,
        4,
        5,
        4,
        3,
        2,
        6,
        0,
        7,
        3,
        4,
        5,
        5,
        3,
        4,
        1,
        4,
        1,
        5,
        1,
        4,
        2,
        3,
        1,
        4,
        3,
        0,
        0,
        6,
        2,
        5,
        1,
        5,
        1,
        3,
        2,
        4,
        1,
        0,
        3,
        4,
        2,
        4,
        4,
        2,
        4,
        2,
        2,
        1,
        2,
        6,
        2,
        3,
        1,
        3,
        3,
        3,
        1,
        2,
        2,
        6,
        1,
        3,
        6,
        2,
        3,
        2,
        2,
        1,
        4,
        6,
        4,
        4,
        1,
        1,
        2,
        1,
        3,
        2,
        3,
        2,
        4,
        7,
        2,
        4,
        3,
        2,
        7,
        8,
        2,
        4,
        3,
        1,
        0,
        5,
        3,
        1,
        1,
        3,
        2,
        1,
        7,
        6,
        2,
        3,
        2,
        7,
        3,
        2,
        1,
        1,
        4,
        2,
        2,
        4,
        1,
        2,
        1,
        2,
        5,
        4,
        3,
        4,
        2,
        3,
        0,
        2,
        1,
        6,
        6,
        3,
        2,
        1,
        4,
        2,
        0,
        2,
        1,
        2,
        1,
        0,
        0,
        1,
        4,
        1,
        5,
        1,
        3,
        5,
        2,
        1,
        1,
        1,
        3,
        2,
        3,
        1,
        1,
        2,
        3,
        1,
        3,
        0,
        0,
        1,
        1,
        4,
        2,
        3,
        7,
        1,
        1,
        6,
        3,
        2,
        3,
        4,
        2,
        3,
        3,
        0,
        3,
        3,
        0,
        0
      ],
      "xlim": [
        "2018-12-14",
        "2020-01-18"
      ],
      "xticks": [
        {
          "value": "2019-01-01",
          "label": "Jan 2019"
        },
        {
          "value": "2019-04-01",
          "label": "Apr 2019"
        },
        {
          "value": "2019-07-01",
          "label": "Jul 2019"
        },
        {
          "value": "2019-10-01",
          "label": "Oct 2019"
        },
        {
          "value": "2020-01-01",
          "label": "Jan 2020"
        }
      ],
      "ylim": [
        -0.5,
        10.5
      ],
      "yticks": [
        0,
        2,
        4,
        6,
        8,
        10
      ]
    }
  ]
}
